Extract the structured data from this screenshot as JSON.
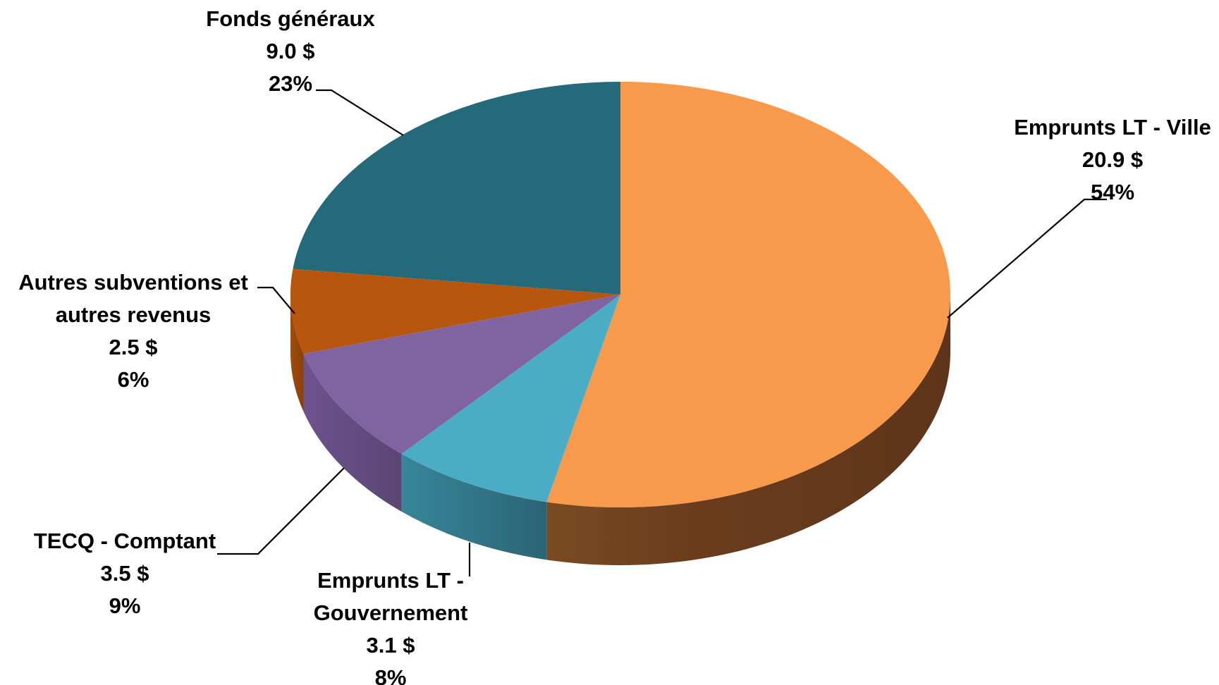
{
  "chart_data": {
    "type": "pie",
    "style": "3d",
    "currency_symbol": "$",
    "slices": [
      {
        "label_lines": [
          "Emprunts LT - Ville"
        ],
        "value": 20.9,
        "value_text": "20.9",
        "percent": 54,
        "percent_text": "54%",
        "color": "#F79A4B",
        "side_color": "#6B3D1C"
      },
      {
        "label_lines": [
          "Emprunts LT -",
          "Gouvernement"
        ],
        "value": 3.1,
        "value_text": "3.1",
        "percent": 8,
        "percent_text": "8%",
        "color": "#4BACC6",
        "side_color": "#2B6A7A"
      },
      {
        "label_lines": [
          "TECQ - Comptant"
        ],
        "value": 3.5,
        "value_text": "3.5",
        "percent": 9,
        "percent_text": "9%",
        "color": "#8064A2",
        "side_color": "#5A4674"
      },
      {
        "label_lines": [
          "Autres subventions et",
          "autres revenus"
        ],
        "value": 2.5,
        "value_text": "2.5",
        "percent": 6,
        "percent_text": "6%",
        "color": "#B8560E",
        "side_color": "#8A4009"
      },
      {
        "label_lines": [
          "Fonds généraux"
        ],
        "value": 9.0,
        "value_text": "9.0",
        "percent": 23,
        "percent_text": "23%",
        "color": "#256A7A",
        "side_color": "#1A4A55"
      }
    ]
  }
}
